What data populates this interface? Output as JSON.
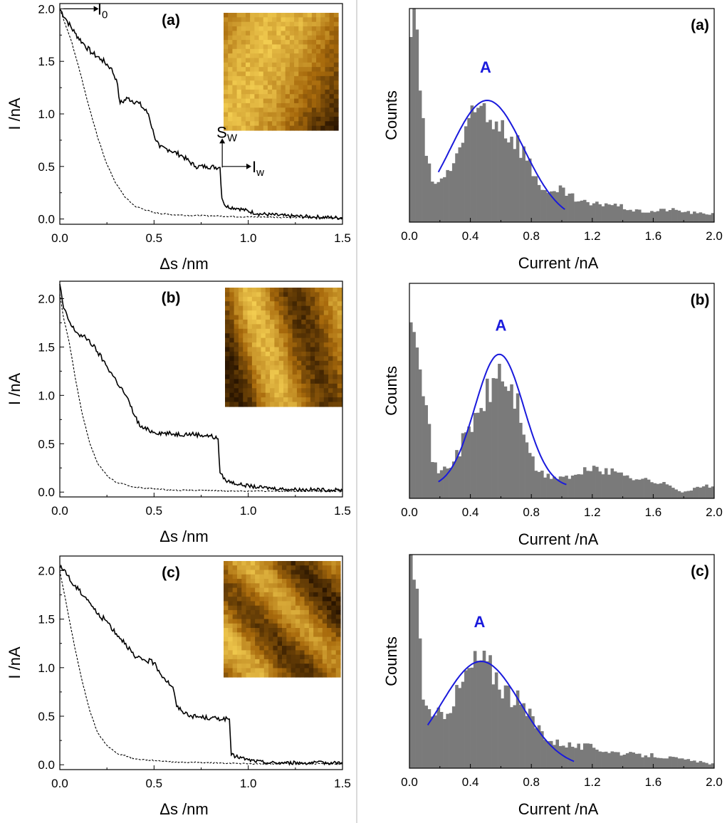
{
  "colors": {
    "bars": "#7a7a7a",
    "fit": "#1a1adc",
    "peak_label": "#1a1adc",
    "trace": "#000000",
    "divider": "#b4b4b4",
    "stm_dark": "#2a1500",
    "stm_mid": "#a86a0c",
    "stm_bright": "#f2cc50"
  },
  "annotations": {
    "i0": "I0",
    "i0_main": "I",
    "i0_sub": "0",
    "sw": "Sw",
    "sw_main": "S",
    "sw_sub": "W",
    "iw": "Iw",
    "iw_main": "I",
    "iw_sub": "w"
  },
  "chart_data": [
    {
      "panel": "(a)",
      "type": "line",
      "xlabel": "Δs /nm",
      "ylabel": "I /nA",
      "xlim": [
        0,
        1.5
      ],
      "ylim": [
        -0.05,
        2.05
      ],
      "xticks": [
        "0.0",
        "0.5",
        "1.0",
        "1.5"
      ],
      "yticks": [
        "0.0",
        "0.5",
        "1.0",
        "1.5",
        "2.0"
      ],
      "inset": "STM image",
      "series": [
        {
          "style": "solid",
          "points": [
            [
              0,
              2.0
            ],
            [
              0.04,
              1.88
            ],
            [
              0.08,
              1.77
            ],
            [
              0.12,
              1.68
            ],
            [
              0.17,
              1.58
            ],
            [
              0.22,
              1.52
            ],
            [
              0.27,
              1.44
            ],
            [
              0.3,
              1.33
            ],
            [
              0.32,
              1.1
            ],
            [
              0.36,
              1.15
            ],
            [
              0.42,
              1.1
            ],
            [
              0.47,
              1.0
            ],
            [
              0.5,
              0.8
            ],
            [
              0.53,
              0.68
            ],
            [
              0.58,
              0.66
            ],
            [
              0.65,
              0.6
            ],
            [
              0.72,
              0.5
            ],
            [
              0.78,
              0.5
            ],
            [
              0.85,
              0.49
            ],
            [
              0.86,
              0.2
            ],
            [
              0.88,
              0.12
            ],
            [
              0.95,
              0.1
            ],
            [
              1.05,
              0.05
            ],
            [
              1.2,
              0.03
            ],
            [
              1.35,
              0.02
            ],
            [
              1.5,
              0.01
            ]
          ]
        },
        {
          "style": "dashed",
          "points": [
            [
              0,
              2.0
            ],
            [
              0.03,
              1.85
            ],
            [
              0.06,
              1.7
            ],
            [
              0.1,
              1.45
            ],
            [
              0.15,
              1.1
            ],
            [
              0.2,
              0.78
            ],
            [
              0.25,
              0.52
            ],
            [
              0.3,
              0.33
            ],
            [
              0.35,
              0.2
            ],
            [
              0.4,
              0.12
            ],
            [
              0.5,
              0.06
            ],
            [
              0.6,
              0.04
            ],
            [
              0.8,
              0.03
            ],
            [
              1.0,
              0.02
            ],
            [
              1.5,
              0.01
            ]
          ]
        }
      ]
    },
    {
      "panel": "(b)",
      "type": "line",
      "xlabel": "Δs /nm",
      "ylabel": "I /nA",
      "xlim": [
        0,
        1.5
      ],
      "ylim": [
        -0.05,
        2.18
      ],
      "xticks": [
        "0.0",
        "0.5",
        "1.0",
        "1.5"
      ],
      "yticks": [
        "0.0",
        "0.5",
        "1.0",
        "1.5",
        "2.0"
      ],
      "inset": "STM image",
      "series": [
        {
          "style": "solid",
          "points": [
            [
              0,
              2.15
            ],
            [
              0.02,
              1.9
            ],
            [
              0.06,
              1.72
            ],
            [
              0.1,
              1.63
            ],
            [
              0.15,
              1.58
            ],
            [
              0.2,
              1.45
            ],
            [
              0.25,
              1.3
            ],
            [
              0.3,
              1.15
            ],
            [
              0.35,
              1.0
            ],
            [
              0.4,
              0.78
            ],
            [
              0.43,
              0.67
            ],
            [
              0.5,
              0.62
            ],
            [
              0.6,
              0.6
            ],
            [
              0.7,
              0.6
            ],
            [
              0.8,
              0.58
            ],
            [
              0.84,
              0.55
            ],
            [
              0.85,
              0.2
            ],
            [
              0.88,
              0.12
            ],
            [
              0.95,
              0.08
            ],
            [
              1.05,
              0.05
            ],
            [
              1.2,
              0.03
            ],
            [
              1.5,
              0.02
            ]
          ]
        },
        {
          "style": "dashed",
          "points": [
            [
              0,
              2.05
            ],
            [
              0.02,
              1.8
            ],
            [
              0.05,
              1.55
            ],
            [
              0.08,
              1.2
            ],
            [
              0.12,
              0.8
            ],
            [
              0.16,
              0.5
            ],
            [
              0.2,
              0.3
            ],
            [
              0.25,
              0.17
            ],
            [
              0.3,
              0.1
            ],
            [
              0.4,
              0.05
            ],
            [
              0.6,
              0.02
            ],
            [
              1.0,
              0.01
            ],
            [
              1.5,
              0.01
            ]
          ]
        }
      ]
    },
    {
      "panel": "(c)",
      "type": "line",
      "xlabel": "Δs /nm",
      "ylabel": "I /nA",
      "xlim": [
        0,
        1.5
      ],
      "ylim": [
        -0.05,
        2.15
      ],
      "xticks": [
        "0.0",
        "0.5",
        "1.0",
        "1.5"
      ],
      "yticks": [
        "0.0",
        "0.5",
        "1.0",
        "1.5",
        "2.0"
      ],
      "inset": "STM image",
      "series": [
        {
          "style": "solid",
          "points": [
            [
              0,
              2.03
            ],
            [
              0.03,
              2.0
            ],
            [
              0.06,
              1.88
            ],
            [
              0.1,
              1.8
            ],
            [
              0.15,
              1.7
            ],
            [
              0.2,
              1.55
            ],
            [
              0.25,
              1.48
            ],
            [
              0.3,
              1.35
            ],
            [
              0.35,
              1.25
            ],
            [
              0.4,
              1.1
            ],
            [
              0.45,
              1.08
            ],
            [
              0.5,
              1.05
            ],
            [
              0.55,
              0.9
            ],
            [
              0.6,
              0.8
            ],
            [
              0.62,
              0.6
            ],
            [
              0.65,
              0.55
            ],
            [
              0.7,
              0.5
            ],
            [
              0.8,
              0.48
            ],
            [
              0.9,
              0.47
            ],
            [
              0.91,
              0.1
            ],
            [
              1.0,
              0.05
            ],
            [
              1.1,
              0.02
            ],
            [
              1.2,
              0.02
            ],
            [
              1.5,
              0.02
            ]
          ]
        },
        {
          "style": "dashed",
          "points": [
            [
              0,
              2.0
            ],
            [
              0.02,
              1.8
            ],
            [
              0.05,
              1.5
            ],
            [
              0.08,
              1.2
            ],
            [
              0.12,
              0.85
            ],
            [
              0.16,
              0.55
            ],
            [
              0.2,
              0.33
            ],
            [
              0.25,
              0.2
            ],
            [
              0.3,
              0.12
            ],
            [
              0.4,
              0.06
            ],
            [
              0.6,
              0.03
            ],
            [
              1.0,
              0.01
            ],
            [
              1.5,
              0.01
            ]
          ]
        }
      ]
    },
    {
      "panel": "(a)",
      "type": "bar",
      "xlabel": "Current /nA",
      "ylabel": "Counts",
      "xlim": [
        0,
        2.0
      ],
      "ylim": [
        0,
        1.0
      ],
      "yticks_shown": false,
      "xticks": [
        "0.0",
        "0.4",
        "0.8",
        "1.2",
        "1.6",
        "2.0"
      ],
      "peak_label": "A",
      "peak_label_at": [
        0.5,
        0.7
      ],
      "bin_width": 0.02,
      "histogram": [
        [
          0.0,
          0.85
        ],
        [
          0.02,
          0.97
        ],
        [
          0.04,
          1.0
        ],
        [
          0.06,
          0.8
        ],
        [
          0.08,
          0.5
        ],
        [
          0.1,
          0.35
        ],
        [
          0.14,
          0.2
        ],
        [
          0.2,
          0.18
        ],
        [
          0.24,
          0.22
        ],
        [
          0.3,
          0.3
        ],
        [
          0.36,
          0.4
        ],
        [
          0.42,
          0.48
        ],
        [
          0.48,
          0.55
        ],
        [
          0.52,
          0.48
        ],
        [
          0.56,
          0.5
        ],
        [
          0.62,
          0.45
        ],
        [
          0.68,
          0.4
        ],
        [
          0.74,
          0.35
        ],
        [
          0.8,
          0.25
        ],
        [
          0.86,
          0.18
        ],
        [
          0.92,
          0.12
        ],
        [
          1.0,
          0.15
        ],
        [
          1.1,
          0.1
        ],
        [
          1.2,
          0.08
        ],
        [
          1.3,
          0.09
        ],
        [
          1.4,
          0.07
        ],
        [
          1.5,
          0.05
        ],
        [
          1.6,
          0.05
        ],
        [
          1.7,
          0.06
        ],
        [
          1.8,
          0.05
        ],
        [
          1.9,
          0.04
        ],
        [
          1.98,
          0.04
        ]
      ],
      "fit": {
        "shape": "gaussian",
        "center": 0.51,
        "height": 0.57,
        "sigma": 0.24,
        "baseline": 0,
        "x_range": [
          0.19,
          1.02
        ]
      }
    },
    {
      "panel": "(b)",
      "type": "bar",
      "xlabel": "Current /nA",
      "ylabel": "Counts",
      "xlim": [
        0,
        2.0
      ],
      "ylim": [
        0,
        1.0
      ],
      "yticks_shown": false,
      "xticks": [
        "0.0",
        "0.4",
        "0.8",
        "1.2",
        "1.6",
        "2.0"
      ],
      "peak_label": "A",
      "peak_label_at": [
        0.6,
        0.78
      ],
      "bin_width": 0.02,
      "histogram": [
        [
          0.0,
          1.0
        ],
        [
          0.02,
          0.95
        ],
        [
          0.04,
          0.88
        ],
        [
          0.06,
          0.8
        ],
        [
          0.08,
          0.65
        ],
        [
          0.1,
          0.5
        ],
        [
          0.12,
          0.35
        ],
        [
          0.16,
          0.15
        ],
        [
          0.2,
          0.12
        ],
        [
          0.26,
          0.15
        ],
        [
          0.32,
          0.22
        ],
        [
          0.38,
          0.3
        ],
        [
          0.44,
          0.38
        ],
        [
          0.5,
          0.46
        ],
        [
          0.56,
          0.55
        ],
        [
          0.6,
          0.6
        ],
        [
          0.64,
          0.52
        ],
        [
          0.7,
          0.46
        ],
        [
          0.76,
          0.3
        ],
        [
          0.82,
          0.14
        ],
        [
          0.9,
          0.1
        ],
        [
          1.0,
          0.1
        ],
        [
          1.1,
          0.1
        ],
        [
          1.2,
          0.15
        ],
        [
          1.3,
          0.12
        ],
        [
          1.4,
          0.12
        ],
        [
          1.5,
          0.09
        ],
        [
          1.6,
          0.08
        ],
        [
          1.7,
          0.06
        ],
        [
          1.8,
          0.03
        ],
        [
          1.9,
          0.05
        ],
        [
          1.98,
          0.06
        ]
      ],
      "fit": {
        "shape": "gaussian",
        "center": 0.59,
        "height": 0.62,
        "sigma": 0.16,
        "baseline": 0.05,
        "x_range": [
          0.19,
          1.03
        ]
      }
    },
    {
      "panel": "(c)",
      "type": "bar",
      "xlabel": "Current /nA",
      "ylabel": "Counts",
      "xlim": [
        0,
        2.0
      ],
      "ylim": [
        0,
        1.0
      ],
      "yticks_shown": false,
      "xticks": [
        "0.0",
        "0.4",
        "0.8",
        "1.2",
        "1.6",
        "2.0"
      ],
      "peak_label": "A",
      "peak_label_at": [
        0.46,
        0.66
      ],
      "bin_width": 0.02,
      "histogram": [
        [
          0.0,
          1.0
        ],
        [
          0.02,
          0.97
        ],
        [
          0.04,
          0.95
        ],
        [
          0.06,
          0.7
        ],
        [
          0.08,
          0.45
        ],
        [
          0.1,
          0.3
        ],
        [
          0.14,
          0.22
        ],
        [
          0.2,
          0.25
        ],
        [
          0.26,
          0.3
        ],
        [
          0.32,
          0.35
        ],
        [
          0.38,
          0.45
        ],
        [
          0.42,
          0.48
        ],
        [
          0.46,
          0.52
        ],
        [
          0.5,
          0.48
        ],
        [
          0.56,
          0.45
        ],
        [
          0.62,
          0.38
        ],
        [
          0.7,
          0.32
        ],
        [
          0.78,
          0.25
        ],
        [
          0.86,
          0.18
        ],
        [
          0.94,
          0.12
        ],
        [
          1.0,
          0.12
        ],
        [
          1.1,
          0.1
        ],
        [
          1.2,
          0.1
        ],
        [
          1.3,
          0.08
        ],
        [
          1.4,
          0.07
        ],
        [
          1.5,
          0.06
        ],
        [
          1.6,
          0.06
        ],
        [
          1.7,
          0.05
        ],
        [
          1.8,
          0.04
        ],
        [
          1.9,
          0.03
        ],
        [
          1.98,
          0.02
        ]
      ],
      "fit": {
        "shape": "gaussian",
        "center": 0.47,
        "height": 0.5,
        "sigma": 0.26,
        "baseline": 0,
        "x_range": [
          0.12,
          1.08
        ]
      }
    }
  ]
}
